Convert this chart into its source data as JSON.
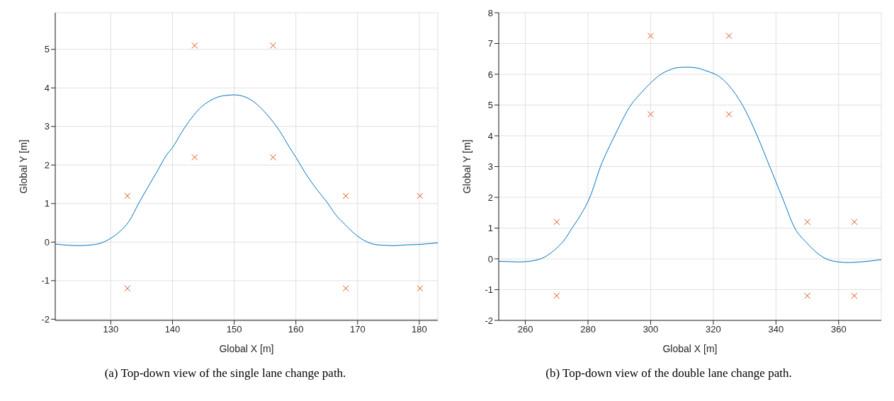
{
  "chart_data": [
    {
      "type": "line",
      "title": "(a) Top-down view of the single lane change path.",
      "xlabel": "Global X [m]",
      "ylabel": "Global Y [m]",
      "xlim": [
        121,
        183
      ],
      "ylim": [
        -2.03,
        5.95
      ],
      "xticks": [
        130,
        140,
        150,
        160,
        170,
        180
      ],
      "yticks": [
        -2,
        -1,
        0,
        1,
        2,
        3,
        4,
        5
      ],
      "grid": true,
      "series": [
        {
          "color": "#0072bd",
          "line_style": "solid",
          "marker": "none",
          "x": [
            121,
            123,
            125,
            127,
            128.5,
            130,
            131.5,
            133,
            134.5,
            136,
            137.5,
            139,
            140,
            141.5,
            143,
            144.5,
            146,
            147.5,
            149,
            150,
            151.5,
            153,
            154.5,
            156,
            157.5,
            159,
            160,
            161.5,
            163,
            165.2,
            166.5,
            168,
            169.5,
            171,
            172.5,
            174,
            176,
            178,
            180,
            181.5,
            183
          ],
          "values": [
            -0.05,
            -0.08,
            -0.09,
            -0.07,
            -0.02,
            0.1,
            0.28,
            0.55,
            1.0,
            1.42,
            1.83,
            2.25,
            2.45,
            2.85,
            3.2,
            3.48,
            3.66,
            3.77,
            3.81,
            3.82,
            3.78,
            3.66,
            3.45,
            3.18,
            2.85,
            2.45,
            2.2,
            1.8,
            1.45,
            1.0,
            0.7,
            0.45,
            0.22,
            0.05,
            -0.05,
            -0.08,
            -0.09,
            -0.07,
            -0.06,
            -0.04,
            -0.02
          ]
        },
        {
          "type": "scatter",
          "color": "#d95319",
          "marker": "cross",
          "x": [
            132.7,
            132.7,
            143.6,
            143.6,
            156.3,
            156.3,
            168.1,
            168.1,
            180.1,
            180.1
          ],
          "values": [
            1.2,
            -1.2,
            5.1,
            2.2,
            5.1,
            2.2,
            1.2,
            -1.2,
            1.2,
            -1.2
          ]
        }
      ]
    },
    {
      "type": "line",
      "title": "(b) Top-down view of the double lane change path.",
      "xlabel": "Global X [m]",
      "ylabel": "Global Y [m]",
      "xlim": [
        251.5,
        373.6
      ],
      "ylim": [
        -2,
        8
      ],
      "xticks": [
        260,
        280,
        300,
        320,
        340,
        360
      ],
      "yticks": [
        -2,
        -1,
        0,
        1,
        2,
        3,
        4,
        5,
        6,
        7,
        8
      ],
      "grid": true,
      "series": [
        {
          "color": "#0072bd",
          "line_style": "solid",
          "marker": "none",
          "x": [
            251.5,
            255,
            258,
            262,
            266,
            270,
            272.5,
            274.9,
            277.5,
            280.6,
            284,
            288.5,
            293.7,
            297,
            300,
            303,
            306,
            309,
            312,
            315,
            318,
            320,
            322.5,
            325,
            329.3,
            334,
            338,
            342,
            346,
            350,
            353,
            356,
            360,
            363,
            367,
            370,
            373.6
          ],
          "values": [
            -0.08,
            -0.09,
            -0.1,
            -0.07,
            0.05,
            0.35,
            0.62,
            1.0,
            1.4,
            2.0,
            3.0,
            4.0,
            5.0,
            5.4,
            5.72,
            5.98,
            6.14,
            6.22,
            6.23,
            6.2,
            6.1,
            6.03,
            5.88,
            5.63,
            5.0,
            4.0,
            3.0,
            2.0,
            1.0,
            0.5,
            0.2,
            0.0,
            -0.1,
            -0.12,
            -0.1,
            -0.07,
            -0.03
          ]
        },
        {
          "type": "scatter",
          "color": "#d95319",
          "marker": "cross",
          "x": [
            270,
            270,
            300,
            300,
            325,
            325,
            350,
            350,
            365,
            365
          ],
          "values": [
            1.2,
            -1.2,
            7.25,
            4.7,
            7.25,
            4.7,
            1.2,
            -1.2,
            1.2,
            -1.2
          ]
        }
      ]
    }
  ]
}
